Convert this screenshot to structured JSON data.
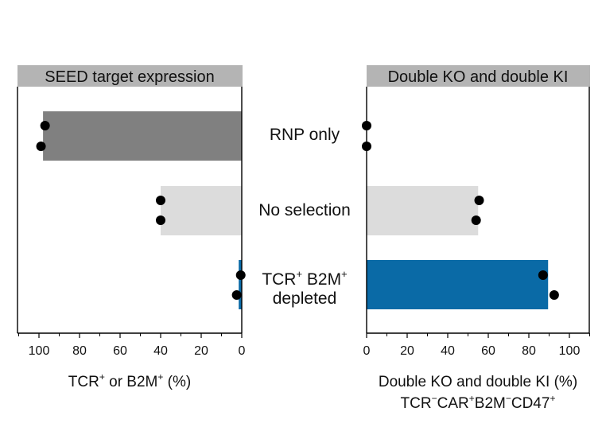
{
  "chart_data": [
    {
      "type": "bar",
      "orientation": "horizontal",
      "title": "SEED target expression",
      "categories": [
        "RNP only",
        "No selection",
        "TCR+ B2M+ depleted"
      ],
      "values": [
        98,
        40,
        1.5
      ],
      "points": [
        [
          97,
          99
        ],
        [
          40,
          40
        ],
        [
          0.5,
          2.5
        ]
      ],
      "xlabel": {
        "text": "TCR",
        "sup": "+",
        "mid": " or B2M",
        "sup2": "+",
        "end": " (%)"
      },
      "xlim": [
        110,
        0
      ],
      "xticks": [
        100,
        80,
        60,
        40,
        20,
        0
      ],
      "x_reversed": true,
      "colors": [
        "#808080",
        "#dcdcdc",
        "#0a6aa6"
      ]
    },
    {
      "type": "bar",
      "orientation": "horizontal",
      "title": "Double KO and double KI",
      "categories": [
        "RNP only",
        "No selection",
        "TCR+ B2M+ depleted"
      ],
      "values": [
        0,
        55,
        89.5
      ],
      "points": [
        [
          0,
          0
        ],
        [
          55.5,
          54
        ],
        [
          87,
          92.5
        ]
      ],
      "xlabel": "Double KO and double KI (%)",
      "xlabel2": [
        "TCR",
        "−",
        "CAR",
        "+",
        "B2M",
        "−",
        "CD47",
        "+"
      ],
      "xlim": [
        0,
        110
      ],
      "xticks": [
        0,
        20,
        40,
        60,
        80,
        100
      ],
      "colors": [
        "#808080",
        "#dcdcdc",
        "#0a6aa6"
      ]
    }
  ],
  "category_labels": {
    "rnp": "RNP only",
    "nosel": "No selection",
    "tcr": "TCR",
    "tcr_sup": "+",
    "b2m": " B2M",
    "b2m_sup": "+",
    "depleted": "depleted"
  }
}
